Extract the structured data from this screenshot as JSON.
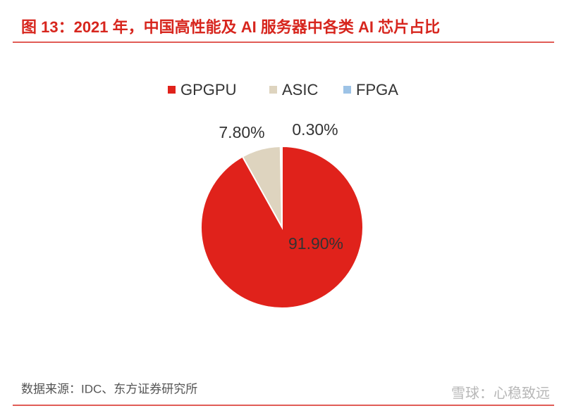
{
  "chart_data": {
    "type": "pie",
    "title": "图 13：2021 年，中国高性能及 AI 服务器中各类 AI 芯片占比",
    "categories": [
      "GPGPU",
      "ASIC",
      "FPGA"
    ],
    "values": [
      91.9,
      7.8,
      0.3
    ],
    "value_labels": [
      "91.90%",
      "7.80%",
      "0.30%"
    ],
    "colors": [
      "#e0221b",
      "#ded4bf",
      "#9dc3e6"
    ],
    "legend": "top",
    "source": "数据来源：IDC、东方证券研究所",
    "watermark": "雪球：心稳致远"
  }
}
